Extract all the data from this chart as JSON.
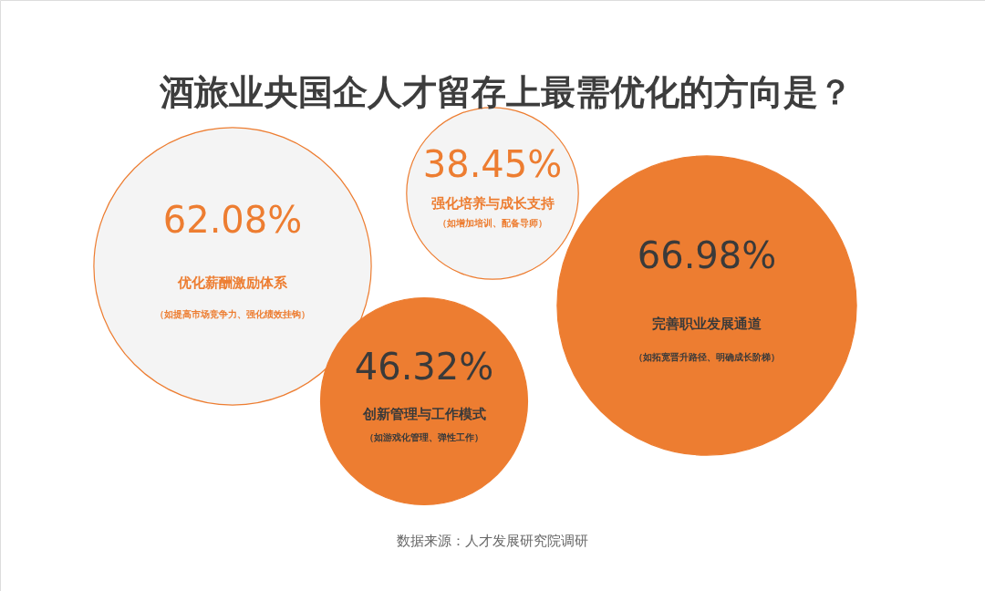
{
  "chart_data": {
    "type": "other",
    "title": "酒旅业央国企人才留存上最需优化的方向是？",
    "categories": [
      "优化薪酬激励体系",
      "创新管理与工作模式",
      "强化培养与成长支持",
      "完善职业发展通道"
    ],
    "values": [
      62.08,
      46.32,
      38.45,
      66.98
    ],
    "value_labels": [
      "62.08%",
      "46.32%",
      "38.45%",
      "66.98%"
    ],
    "colors": [
      "#f4f4f4",
      "#ed7d31",
      "#f4f4f4",
      "#ed7d31"
    ],
    "annotations": [
      "（如提高市场竞争力、强化绩效挂钩）",
      "（如游戏化管理、弹性工作）",
      "（如增加培训、配备导师）",
      "（如拓宽晋升路径、明确成长阶梯）",
      "数据来源：人才发展研究院调研"
    ]
  }
}
